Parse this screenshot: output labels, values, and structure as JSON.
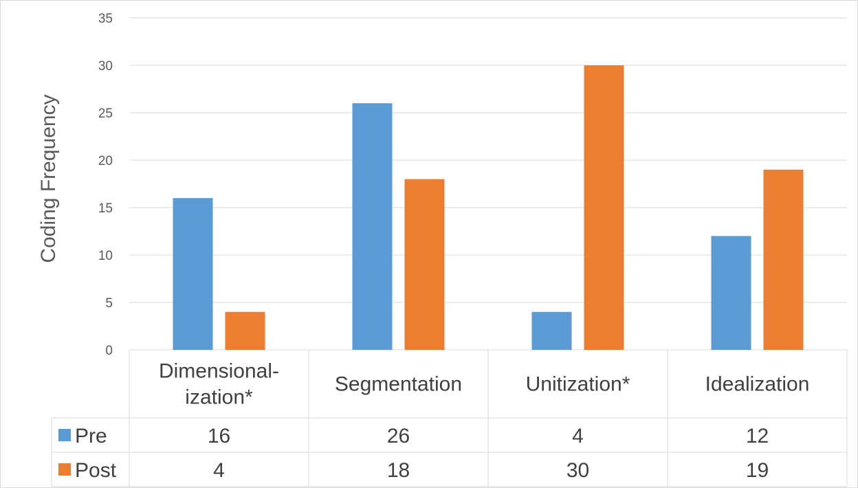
{
  "chart_data": {
    "type": "bar",
    "ylabel": "Coding Frequency",
    "xlabel": "",
    "categories": [
      [
        "Dimensional-",
        "ization*"
      ],
      [
        "Segmentation"
      ],
      [
        "Unitization*"
      ],
      [
        "Idealization"
      ]
    ],
    "series": [
      {
        "name": "Pre",
        "values": [
          16,
          26,
          4,
          12
        ],
        "color": "#5b9bd5"
      },
      {
        "name": "Post",
        "values": [
          4,
          18,
          30,
          19
        ],
        "color": "#ed7d31"
      }
    ],
    "ylim": [
      0,
      35
    ],
    "yticks": [
      0,
      5,
      10,
      15,
      20,
      25,
      30,
      35
    ],
    "grid": true,
    "legend": "data-table-below"
  }
}
